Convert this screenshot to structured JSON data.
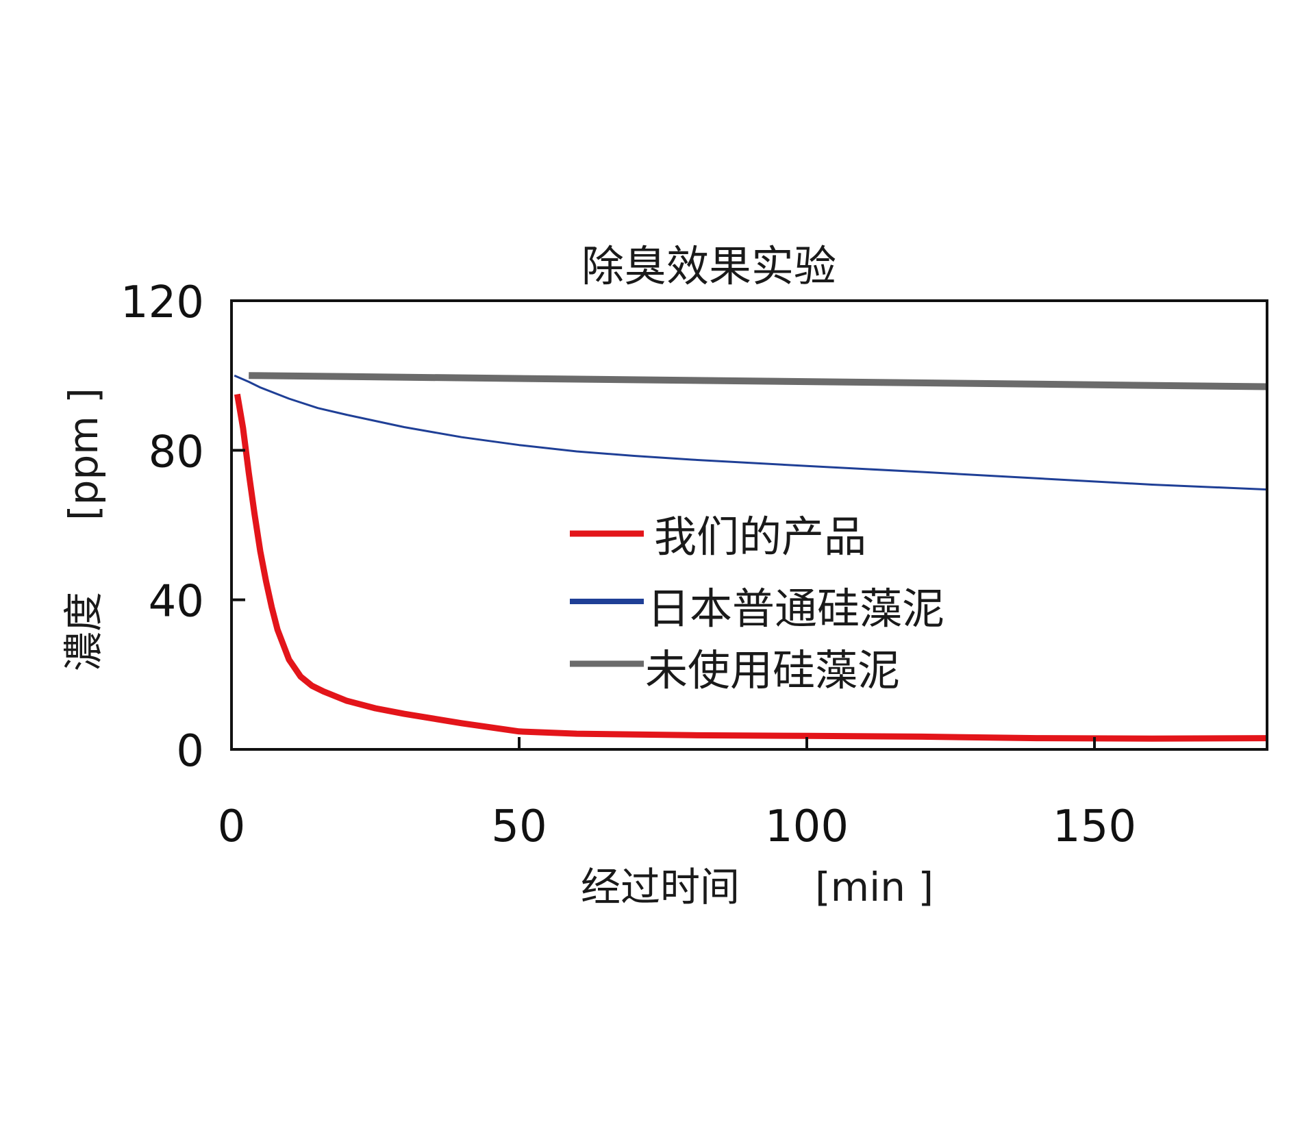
{
  "chart_data": {
    "type": "line",
    "title": "除臭效果实验",
    "xlabel": "经过时间",
    "xunit": "[min ]",
    "ylabel": "濃度",
    "yunit": "[ppm ]",
    "xlim": [
      0,
      180
    ],
    "ylim": [
      0,
      120
    ],
    "xticks": [
      0,
      50,
      100,
      150
    ],
    "xtick_labels": [
      "0",
      "50",
      "100",
      "150"
    ],
    "yticks": [
      0,
      40,
      80,
      120
    ],
    "ytick_labels": [
      "0",
      "40",
      "80",
      "120"
    ],
    "grid": false,
    "legend_position": "center-right",
    "series": [
      {
        "name": "我们的产品",
        "color": "#e3151a",
        "x": [
          1,
          2,
          3,
          4,
          5,
          6,
          7,
          8,
          10,
          12,
          14,
          16,
          20,
          25,
          30,
          40,
          50,
          60,
          80,
          100,
          120,
          140,
          160,
          180
        ],
        "y": [
          95,
          86,
          74,
          63,
          53,
          45,
          38,
          32,
          24,
          19.5,
          17,
          15.5,
          13,
          11,
          9.5,
          7,
          4.8,
          4.2,
          3.8,
          3.6,
          3.4,
          3.0,
          2.9,
          3.0
        ]
      },
      {
        "name": "日本普通硅藻泥",
        "color": "#1f3f96",
        "x": [
          0.5,
          3,
          5,
          10,
          15,
          20,
          30,
          40,
          50,
          60,
          70,
          80,
          100,
          120,
          140,
          160,
          180
        ],
        "y": [
          100,
          98.3,
          96.8,
          93.8,
          91.3,
          89.5,
          86.2,
          83.5,
          81.4,
          79.7,
          78.5,
          77.5,
          75.8,
          74.2,
          72.5,
          70.8,
          69.5
        ]
      },
      {
        "name": "未使用硅藻泥",
        "color": "#6b6b6b",
        "x": [
          3,
          180
        ],
        "y": [
          100,
          97
        ]
      }
    ]
  }
}
